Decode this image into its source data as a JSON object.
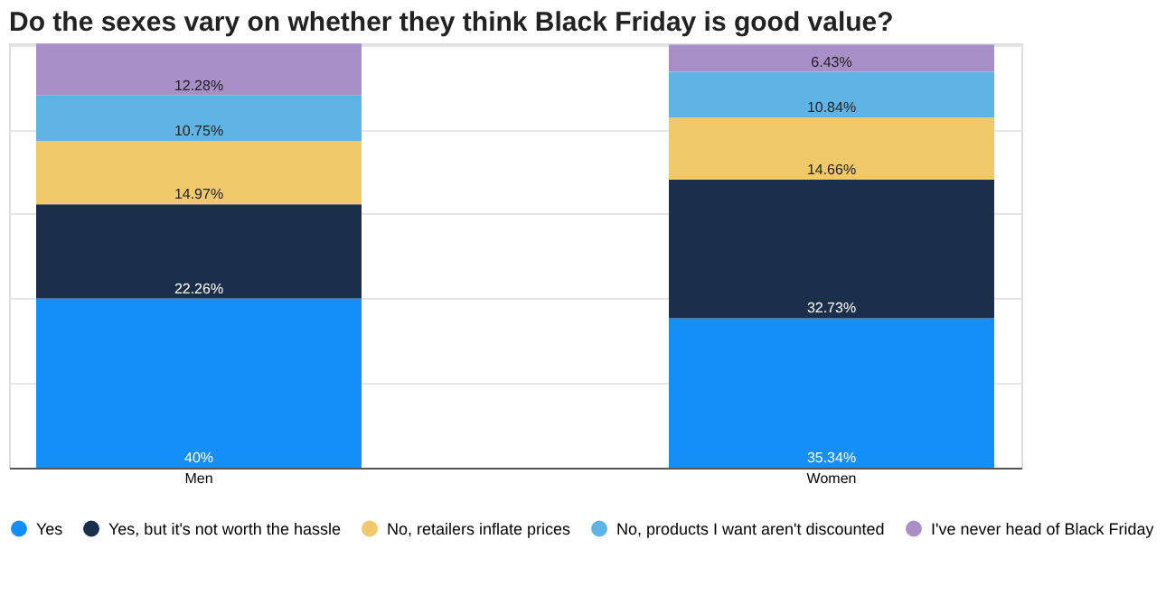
{
  "chart_data": {
    "type": "bar",
    "title": "Do the sexes vary on whether they think Black Friday is good value?",
    "categories": [
      "Men",
      "Women"
    ],
    "stacked": true,
    "legend": "bottom",
    "grid": "y",
    "tick_labels": "x",
    "ylim": [
      0,
      100.3
    ],
    "yticks": [
      {
        "value": 0,
        "label": null
      },
      {
        "value": 20,
        "label": null
      },
      {
        "value": 40,
        "label": null
      },
      {
        "value": 60,
        "label": null
      },
      {
        "value": 80,
        "label": null
      },
      {
        "value": 100,
        "label": null
      }
    ],
    "series": [
      {
        "name": "Yes",
        "color": "#148ffa",
        "values": [
          40,
          35.34
        ],
        "value_labels": [
          "40%",
          "35.34%"
        ]
      },
      {
        "name": "Yes, but it's not worth the hassle",
        "color": "#1b2e4b",
        "values": [
          22.26,
          32.73
        ],
        "value_labels": [
          "22.26%",
          "32.73%"
        ]
      },
      {
        "name": "No, retailers inflate prices",
        "color": "#f0c96a",
        "values": [
          14.97,
          14.66
        ],
        "value_labels": [
          "14.97%",
          "14.66%"
        ]
      },
      {
        "name": "No, products I want aren't discounted",
        "color": "#5eb5e5",
        "values": [
          10.75,
          10.84
        ],
        "value_labels": [
          "10.75%",
          "10.84%"
        ]
      },
      {
        "name": "I've never head of Black Friday",
        "color": "#a88fc8",
        "values": [
          12.28,
          6.43
        ],
        "value_labels": [
          "12.28%",
          "6.43%"
        ]
      }
    ]
  }
}
